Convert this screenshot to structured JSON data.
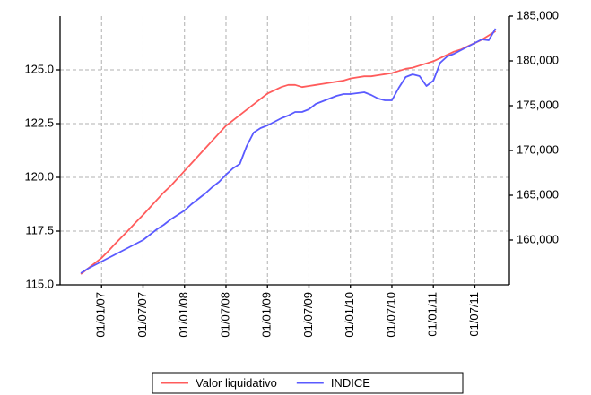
{
  "chart_data": {
    "type": "line",
    "x": [
      "01/10/06",
      "01/11/06",
      "01/12/06",
      "01/01/07",
      "01/02/07",
      "01/03/07",
      "01/04/07",
      "01/05/07",
      "01/06/07",
      "01/07/07",
      "01/08/07",
      "01/09/07",
      "01/10/07",
      "01/11/07",
      "01/12/07",
      "01/01/08",
      "01/02/08",
      "01/03/08",
      "01/04/08",
      "01/05/08",
      "01/06/08",
      "01/07/08",
      "01/08/08",
      "01/09/08",
      "01/10/08",
      "01/11/08",
      "01/12/08",
      "01/01/09",
      "01/02/09",
      "01/03/09",
      "01/04/09",
      "01/05/09",
      "01/06/09",
      "01/07/09",
      "01/08/09",
      "01/09/09",
      "01/10/09",
      "01/11/09",
      "01/12/09",
      "01/01/10",
      "01/02/10",
      "01/03/10",
      "01/04/10",
      "01/05/10",
      "01/06/10",
      "01/07/10",
      "01/08/10",
      "01/09/10",
      "01/10/10",
      "01/11/10",
      "01/12/10",
      "01/01/11",
      "01/02/11",
      "01/03/11",
      "01/04/11",
      "01/05/11",
      "01/06/11",
      "01/07/11",
      "01/08/11",
      "01/09/11",
      "01/10/11"
    ],
    "series": [
      {
        "name": "Valor liquidativo",
        "color": "#ff5c5c",
        "axis": "y",
        "values": [
          115.5,
          115.75,
          116.0,
          116.25,
          116.58,
          116.92,
          117.25,
          117.58,
          117.92,
          118.25,
          118.6,
          118.95,
          119.3,
          119.6,
          119.95,
          120.3,
          120.65,
          121.0,
          121.35,
          121.7,
          122.05,
          122.4,
          122.65,
          122.9,
          123.15,
          123.4,
          123.65,
          123.9,
          124.05,
          124.2,
          124.3,
          124.3,
          124.2,
          124.25,
          124.3,
          124.35,
          124.4,
          124.45,
          124.5,
          124.6,
          124.65,
          124.7,
          124.7,
          124.75,
          124.8,
          124.85,
          124.95,
          125.05,
          125.1,
          125.2,
          125.3,
          125.4,
          125.55,
          125.7,
          125.85,
          125.95,
          126.1,
          126.25,
          126.4,
          126.6,
          126.8
        ]
      },
      {
        "name": "INDICE",
        "color": "#5a5aff",
        "axis": "y2",
        "values": [
          156300,
          156800,
          157200,
          157600,
          158000,
          158400,
          158800,
          159200,
          159600,
          160000,
          160600,
          161200,
          161700,
          162300,
          162800,
          163300,
          164000,
          164600,
          165200,
          165900,
          166500,
          167300,
          168000,
          168500,
          170500,
          172000,
          172500,
          172800,
          173200,
          173600,
          173900,
          174300,
          174300,
          174600,
          175200,
          175500,
          175800,
          176100,
          176300,
          176300,
          176400,
          176500,
          176200,
          175800,
          175600,
          175600,
          177000,
          178200,
          178500,
          178300,
          177200,
          177800,
          179800,
          180500,
          180800,
          181200,
          181600,
          182000,
          182400,
          182300,
          183600
        ]
      }
    ],
    "xlim": [
      "01/07/06",
      "01/12/11"
    ],
    "xticks": [
      "01/01/07",
      "01/07/07",
      "01/01/08",
      "01/07/08",
      "01/01/09",
      "01/07/09",
      "01/01/10",
      "01/07/10",
      "01/01/11",
      "01/07/11"
    ],
    "ylim": [
      115,
      127.5
    ],
    "yticks": [
      {
        "value": 115,
        "label": "115.0"
      },
      {
        "value": 117.5,
        "label": "117.5"
      },
      {
        "value": 120,
        "label": "120.0"
      },
      {
        "value": 122.5,
        "label": "122.5"
      },
      {
        "value": 125,
        "label": "125.0"
      }
    ],
    "y2lim": [
      155000,
      185000
    ],
    "y2ticks": [
      {
        "value": 160000,
        "label": "160,000"
      },
      {
        "value": 165000,
        "label": "165,000"
      },
      {
        "value": 170000,
        "label": "170,000"
      },
      {
        "value": 175000,
        "label": "175,000"
      },
      {
        "value": 180000,
        "label": "180,000"
      },
      {
        "value": 185000,
        "label": "185,000"
      }
    ],
    "grid": true,
    "legend": "bottom"
  }
}
